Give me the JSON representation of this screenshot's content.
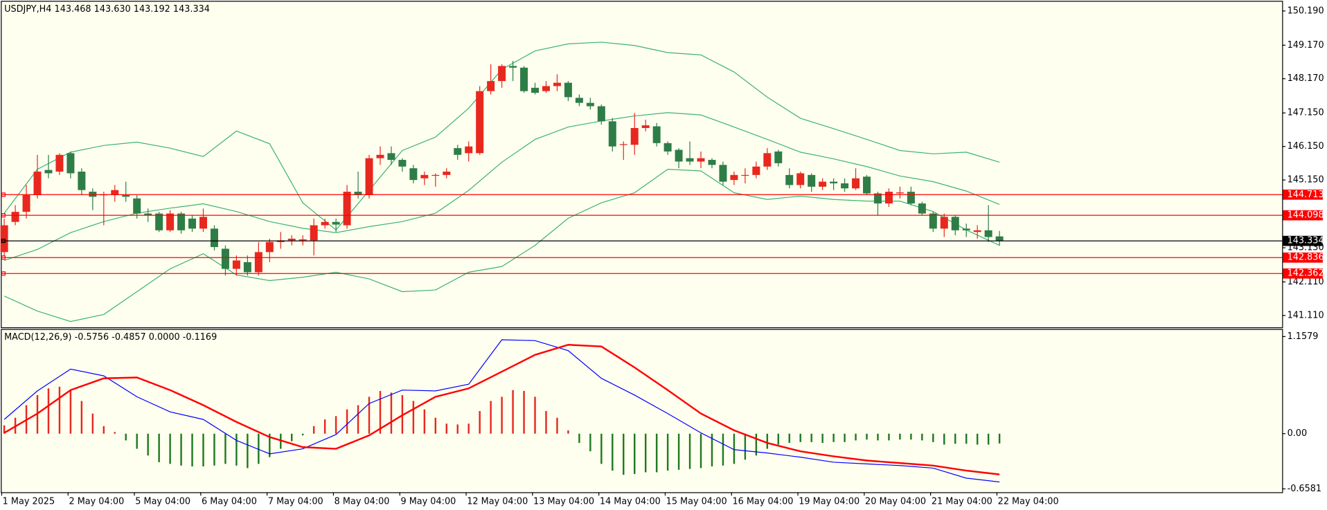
{
  "chart_data": [
    {
      "type": "candlestick",
      "title": "USDJPY,H4  143.468 143.630 143.192 143.334",
      "categories": [
        "1 May 2025",
        null,
        null,
        null,
        null,
        null,
        "2 May 04:00",
        null,
        null,
        null,
        null,
        null,
        "5 May 04:00",
        null,
        null,
        null,
        null,
        null,
        "6 May 04:00",
        null,
        null,
        null,
        null,
        null,
        "7 May 04:00",
        null,
        null,
        null,
        null,
        null,
        "8 May 04:00",
        null,
        null,
        null,
        null,
        null,
        "9 May 04:00",
        null,
        null,
        null,
        null,
        null,
        "12 May 04:00",
        null,
        null,
        null,
        null,
        null,
        "13 May 04:00",
        null,
        null,
        null,
        null,
        null,
        "14 May 04:00",
        null,
        null,
        null,
        null,
        null,
        "15 May 04:00",
        null,
        null,
        null,
        null,
        null,
        "16 May 04:00",
        null,
        null,
        null,
        null,
        null,
        "19 May 04:00",
        null,
        null,
        null,
        null,
        null,
        "20 May 04:00",
        null,
        null,
        null,
        null,
        null,
        "21 May 04:00",
        null,
        null,
        null,
        null,
        null,
        "22 May 04:00"
      ],
      "open": [
        143.0,
        143.9,
        144.2,
        144.7,
        145.45,
        145.4,
        145.95,
        145.4,
        144.8,
        144.7,
        144.7,
        144.7,
        144.6,
        144.15,
        144.15,
        143.65,
        144.15,
        144.0,
        143.7,
        143.7,
        143.1,
        142.5,
        142.7,
        142.4,
        143.0,
        143.3,
        143.35,
        143.35,
        143.35,
        143.8,
        143.9,
        143.8,
        144.8,
        144.7,
        145.8,
        145.95,
        145.75,
        145.5,
        145.2,
        145.28,
        145.3,
        146.1,
        145.95,
        145.95,
        147.8,
        148.1,
        148.55,
        148.5,
        147.9,
        147.8,
        147.95,
        148.05,
        147.6,
        147.45,
        147.35,
        146.9,
        146.2,
        146.2,
        146.7,
        146.75,
        146.25,
        146.05,
        145.8,
        145.7,
        145.75,
        145.6,
        145.15,
        145.3,
        145.3,
        145.55,
        146.0,
        145.3,
        145.0,
        145.3,
        144.95,
        145.1,
        145.05,
        144.9,
        145.25,
        144.75,
        144.45,
        144.75,
        144.8,
        144.45,
        144.15,
        143.7,
        144.05,
        143.7,
        143.6,
        143.65,
        143.468
      ],
      "high": [
        144.0,
        144.4,
        145.0,
        145.9,
        145.9,
        145.95,
        146.0,
        145.5,
        144.9,
        144.8,
        145.0,
        145.1,
        144.7,
        144.3,
        144.2,
        144.25,
        144.2,
        144.1,
        144.3,
        143.8,
        143.2,
        142.9,
        142.9,
        143.3,
        143.4,
        143.6,
        143.5,
        143.5,
        144.0,
        144.0,
        144.0,
        145.0,
        145.4,
        145.9,
        146.15,
        146.15,
        145.8,
        145.6,
        145.4,
        145.35,
        145.5,
        146.2,
        146.3,
        147.95,
        148.6,
        148.6,
        148.7,
        148.55,
        148.05,
        148.1,
        148.3,
        148.1,
        147.7,
        147.6,
        147.4,
        147.0,
        146.3,
        147.15,
        146.95,
        146.85,
        146.3,
        146.1,
        146.3,
        146.0,
        145.8,
        145.7,
        145.4,
        145.5,
        145.7,
        146.1,
        146.05,
        145.5,
        145.4,
        145.35,
        145.2,
        145.2,
        145.2,
        145.5,
        145.3,
        144.8,
        144.9,
        144.95,
        144.95,
        144.5,
        144.2,
        144.15,
        144.1,
        143.85,
        143.8,
        144.4,
        143.63
      ],
      "low": [
        142.9,
        143.8,
        144.0,
        144.6,
        145.2,
        145.3,
        145.2,
        144.7,
        144.25,
        143.8,
        144.5,
        144.5,
        144.0,
        143.9,
        143.6,
        143.6,
        143.55,
        143.6,
        143.6,
        143.05,
        142.3,
        142.3,
        142.3,
        142.3,
        142.7,
        143.1,
        143.2,
        143.2,
        142.9,
        143.7,
        143.6,
        143.7,
        144.6,
        144.6,
        145.6,
        145.6,
        145.4,
        145.05,
        145.0,
        144.95,
        145.2,
        145.75,
        145.7,
        145.9,
        147.7,
        147.9,
        148.1,
        147.75,
        147.7,
        147.75,
        147.8,
        147.5,
        147.35,
        147.25,
        146.8,
        146.0,
        145.75,
        145.9,
        146.6,
        146.15,
        145.9,
        145.5,
        145.6,
        145.5,
        145.5,
        145.0,
        145.0,
        145.05,
        145.2,
        145.45,
        145.55,
        144.9,
        144.9,
        144.8,
        144.85,
        144.85,
        144.8,
        144.85,
        144.7,
        144.1,
        144.35,
        144.6,
        144.4,
        144.1,
        143.6,
        143.45,
        143.5,
        143.45,
        143.4,
        143.3,
        143.192
      ],
      "close": [
        143.8,
        144.2,
        144.7,
        145.4,
        145.35,
        145.9,
        145.35,
        144.85,
        144.65,
        144.72,
        144.85,
        144.65,
        144.15,
        144.1,
        143.65,
        144.15,
        143.65,
        143.7,
        144.05,
        143.15,
        142.5,
        142.75,
        142.4,
        143.0,
        143.3,
        143.35,
        143.4,
        143.38,
        143.8,
        143.9,
        143.82,
        144.8,
        144.7,
        145.8,
        145.9,
        145.75,
        145.55,
        145.15,
        145.3,
        145.3,
        145.4,
        145.9,
        146.15,
        147.8,
        148.1,
        148.55,
        148.5,
        147.8,
        147.75,
        147.95,
        148.05,
        147.62,
        147.45,
        147.35,
        146.9,
        146.15,
        146.22,
        146.7,
        146.78,
        146.25,
        146.0,
        145.7,
        145.7,
        145.8,
        145.6,
        145.1,
        145.3,
        145.3,
        145.55,
        145.95,
        145.65,
        145.0,
        145.35,
        144.95,
        145.1,
        145.05,
        144.9,
        145.2,
        144.75,
        144.45,
        144.8,
        144.78,
        144.45,
        144.15,
        143.7,
        144.05,
        143.65,
        143.65,
        143.65,
        143.45,
        143.334
      ],
      "up_color": "#e8281e",
      "down_color": "#2e7d47",
      "bands": [
        {
          "color": "#3cb371",
          "x": [
            0,
            3,
            6,
            9,
            12,
            15,
            18,
            21,
            24,
            27,
            30,
            33,
            36,
            39,
            42,
            45,
            48,
            51,
            54,
            57,
            60,
            63,
            66,
            69,
            72,
            75,
            78,
            81,
            84,
            87,
            90
          ],
          "values": [
            144.16,
            145.47,
            145.98,
            146.18,
            146.28,
            146.1,
            145.85,
            146.61,
            146.23,
            144.47,
            143.66,
            144.84,
            146.03,
            146.43,
            147.29,
            148.45,
            149.0,
            149.21,
            149.26,
            149.16,
            148.95,
            148.88,
            148.37,
            147.62,
            146.99,
            146.68,
            146.36,
            146.03,
            145.93,
            145.98,
            145.68
          ]
        },
        {
          "color": "#3cb371",
          "x": [
            0,
            3,
            6,
            9,
            12,
            15,
            18,
            21,
            24,
            27,
            30,
            33,
            36,
            39,
            42,
            45,
            48,
            51,
            54,
            57,
            60,
            63,
            66,
            69,
            72,
            75,
            78,
            81,
            84,
            87,
            90
          ],
          "values": [
            142.75,
            143.08,
            143.58,
            143.91,
            144.16,
            144.31,
            144.44,
            144.21,
            143.91,
            143.71,
            143.58,
            143.76,
            143.91,
            144.16,
            144.84,
            145.68,
            146.36,
            146.73,
            146.91,
            147.06,
            147.16,
            147.09,
            146.73,
            146.36,
            145.98,
            145.78,
            145.55,
            145.27,
            145.1,
            144.82,
            144.42
          ]
        },
        {
          "color": "#3cb371",
          "x": [
            0,
            3,
            6,
            9,
            12,
            15,
            18,
            21,
            24,
            27,
            30,
            33,
            36,
            39,
            42,
            45,
            48,
            51,
            54,
            57,
            60,
            63,
            66,
            69,
            72,
            75,
            78,
            81,
            84,
            87,
            90
          ],
          "values": [
            141.69,
            141.24,
            140.93,
            141.14,
            141.82,
            142.5,
            142.95,
            142.32,
            142.15,
            142.25,
            142.4,
            142.2,
            141.82,
            141.87,
            142.4,
            142.57,
            143.2,
            144.01,
            144.47,
            144.77,
            145.47,
            145.42,
            144.77,
            144.57,
            144.67,
            144.57,
            144.52,
            144.52,
            144.21,
            143.66,
            143.2
          ]
        }
      ],
      "levels": [
        144.713,
        144.098,
        142.836,
        142.362
      ],
      "level_color": "#ff0000",
      "ylim": [
        140.757,
        150.467
      ],
      "yticks": [
        {
          "value": 150.19,
          "label": "150.190"
        },
        {
          "value": 149.17,
          "label": "149.170"
        },
        {
          "value": 148.17,
          "label": "148.170"
        },
        {
          "value": 147.15,
          "label": "147.150"
        },
        {
          "value": 146.15,
          "label": "146.150"
        },
        {
          "value": 145.15,
          "label": "145.150"
        },
        {
          "value": 143.13,
          "label": "143.130"
        },
        {
          "value": 142.11,
          "label": "142.110"
        },
        {
          "value": 141.11,
          "label": "141.110"
        }
      ]
    },
    {
      "type": "combo",
      "title": "MACD(12,26,9) -0.5756 -0.4857 0.0000 -0.1169",
      "series": [
        {
          "type": "bar",
          "up_color": "#e8281e",
          "down_color": "#1f7a1f",
          "values": [
            0.1,
            0.19,
            0.34,
            0.46,
            0.54,
            0.56,
            0.52,
            0.39,
            0.24,
            0.09,
            0.02,
            -0.08,
            -0.18,
            -0.26,
            -0.34,
            -0.36,
            -0.38,
            -0.39,
            -0.39,
            -0.38,
            -0.36,
            -0.38,
            -0.41,
            -0.36,
            -0.28,
            -0.18,
            -0.09,
            -0.02,
            0.09,
            0.17,
            0.21,
            0.29,
            0.34,
            0.44,
            0.51,
            0.49,
            0.46,
            0.39,
            0.29,
            0.19,
            0.12,
            0.11,
            0.12,
            0.27,
            0.39,
            0.44,
            0.52,
            0.51,
            0.44,
            0.27,
            0.19,
            0.04,
            -0.11,
            -0.21,
            -0.36,
            -0.44,
            -0.49,
            -0.48,
            -0.46,
            -0.46,
            -0.44,
            -0.43,
            -0.42,
            -0.41,
            -0.39,
            -0.38,
            -0.36,
            -0.31,
            -0.26,
            -0.18,
            -0.13,
            -0.11,
            -0.1,
            -0.1,
            -0.11,
            -0.1,
            -0.1,
            -0.08,
            -0.07,
            -0.08,
            -0.08,
            -0.07,
            -0.07,
            -0.08,
            -0.1,
            -0.13,
            -0.12,
            -0.12,
            -0.13,
            -0.13,
            -0.1169
          ]
        },
        {
          "type": "line",
          "color": "#0000ff",
          "width": 1,
          "x": [
            0,
            3,
            6,
            9,
            12,
            15,
            18,
            21,
            24,
            27,
            30,
            33,
            36,
            39,
            42,
            45,
            48,
            51,
            54,
            57,
            60,
            63,
            66,
            69,
            72,
            75,
            78,
            81,
            84,
            87,
            90
          ],
          "values": [
            0.17,
            0.51,
            0.77,
            0.69,
            0.44,
            0.26,
            0.17,
            -0.08,
            -0.24,
            -0.18,
            -0.01,
            0.36,
            0.52,
            0.51,
            0.59,
            1.12,
            1.11,
            0.99,
            0.66,
            0.46,
            0.24,
            0.01,
            -0.19,
            -0.23,
            -0.28,
            -0.34,
            -0.36,
            -0.38,
            -0.41,
            -0.53,
            -0.5756
          ]
        },
        {
          "type": "line",
          "color": "#ff0000",
          "width": 2,
          "x": [
            0,
            3,
            6,
            9,
            12,
            15,
            18,
            21,
            24,
            27,
            30,
            33,
            36,
            39,
            42,
            45,
            48,
            51,
            54,
            57,
            60,
            63,
            66,
            69,
            72,
            75,
            78,
            81,
            84,
            87,
            90
          ],
          "values": [
            0.01,
            0.24,
            0.52,
            0.66,
            0.67,
            0.52,
            0.34,
            0.14,
            -0.04,
            -0.16,
            -0.18,
            -0.02,
            0.22,
            0.44,
            0.54,
            0.74,
            0.94,
            1.06,
            1.04,
            0.79,
            0.52,
            0.24,
            0.04,
            -0.11,
            -0.21,
            -0.27,
            -0.32,
            -0.35,
            -0.38,
            -0.44,
            -0.4857
          ]
        }
      ],
      "ylim": [
        -0.698,
        1.238
      ],
      "yticks": [
        1.1579,
        {
          "value": 0,
          "label": "0.00"
        },
        -0.6581
      ]
    }
  ]
}
